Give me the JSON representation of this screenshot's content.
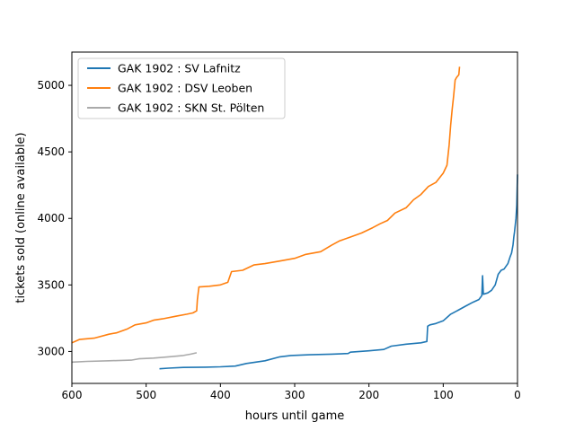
{
  "chart_data": {
    "type": "line",
    "xlabel": "hours until game",
    "ylabel": "tickets sold (online available)",
    "xlim": [
      600,
      0
    ],
    "ylim": [
      2760,
      5250
    ],
    "x_reversed": true,
    "xticks": [
      600,
      500,
      400,
      300,
      200,
      100,
      0
    ],
    "yticks": [
      3000,
      3500,
      4000,
      4500,
      5000
    ],
    "grid": false,
    "legend_position": "top-left",
    "series": [
      {
        "name": "GAK 1902 : SV Lafnitz",
        "color": "#1f77b4",
        "points": [
          [
            482,
            2870
          ],
          [
            470,
            2875
          ],
          [
            450,
            2880
          ],
          [
            420,
            2882
          ],
          [
            400,
            2885
          ],
          [
            380,
            2890
          ],
          [
            365,
            2910
          ],
          [
            340,
            2930
          ],
          [
            320,
            2960
          ],
          [
            305,
            2970
          ],
          [
            280,
            2975
          ],
          [
            250,
            2980
          ],
          [
            228,
            2985
          ],
          [
            225,
            2995
          ],
          [
            200,
            3005
          ],
          [
            180,
            3015
          ],
          [
            170,
            3040
          ],
          [
            150,
            3055
          ],
          [
            130,
            3065
          ],
          [
            122,
            3075
          ],
          [
            121,
            3190
          ],
          [
            118,
            3200
          ],
          [
            110,
            3210
          ],
          [
            100,
            3230
          ],
          [
            90,
            3280
          ],
          [
            80,
            3310
          ],
          [
            70,
            3340
          ],
          [
            60,
            3370
          ],
          [
            52,
            3390
          ],
          [
            48,
            3420
          ],
          [
            47,
            3570
          ],
          [
            46,
            3430
          ],
          [
            40,
            3440
          ],
          [
            35,
            3460
          ],
          [
            30,
            3500
          ],
          [
            26,
            3580
          ],
          [
            22,
            3610
          ],
          [
            18,
            3620
          ],
          [
            13,
            3660
          ],
          [
            10,
            3710
          ],
          [
            8,
            3740
          ],
          [
            6,
            3800
          ],
          [
            5,
            3860
          ],
          [
            4,
            3900
          ],
          [
            3,
            3950
          ],
          [
            2,
            4000
          ],
          [
            1,
            4100
          ],
          [
            0,
            4330
          ]
        ]
      },
      {
        "name": "GAK 1902 : DSV Leoben",
        "color": "#ff7f0e",
        "points": [
          [
            600,
            3065
          ],
          [
            590,
            3090
          ],
          [
            570,
            3100
          ],
          [
            550,
            3130
          ],
          [
            540,
            3140
          ],
          [
            525,
            3170
          ],
          [
            515,
            3200
          ],
          [
            500,
            3215
          ],
          [
            490,
            3235
          ],
          [
            478,
            3245
          ],
          [
            460,
            3265
          ],
          [
            445,
            3280
          ],
          [
            437,
            3290
          ],
          [
            432,
            3305
          ],
          [
            431,
            3390
          ],
          [
            429,
            3485
          ],
          [
            415,
            3490
          ],
          [
            400,
            3500
          ],
          [
            390,
            3520
          ],
          [
            385,
            3600
          ],
          [
            370,
            3610
          ],
          [
            355,
            3650
          ],
          [
            340,
            3660
          ],
          [
            320,
            3680
          ],
          [
            300,
            3700
          ],
          [
            285,
            3730
          ],
          [
            265,
            3750
          ],
          [
            250,
            3800
          ],
          [
            240,
            3830
          ],
          [
            225,
            3860
          ],
          [
            210,
            3890
          ],
          [
            195,
            3930
          ],
          [
            185,
            3960
          ],
          [
            175,
            3985
          ],
          [
            165,
            4040
          ],
          [
            150,
            4080
          ],
          [
            140,
            4140
          ],
          [
            130,
            4180
          ],
          [
            120,
            4240
          ],
          [
            110,
            4270
          ],
          [
            100,
            4340
          ],
          [
            95,
            4400
          ],
          [
            92,
            4550
          ],
          [
            90,
            4700
          ],
          [
            88,
            4820
          ],
          [
            86,
            4920
          ],
          [
            84,
            5040
          ],
          [
            82,
            5060
          ],
          [
            79,
            5080
          ],
          [
            78,
            5140
          ]
        ]
      },
      {
        "name": "GAK 1902 : SKN St. Pölten",
        "color": "#aaaaaa",
        "points": [
          [
            600,
            2920
          ],
          [
            580,
            2925
          ],
          [
            550,
            2930
          ],
          [
            520,
            2935
          ],
          [
            510,
            2945
          ],
          [
            490,
            2950
          ],
          [
            470,
            2960
          ],
          [
            450,
            2970
          ],
          [
            440,
            2980
          ],
          [
            432,
            2990
          ]
        ]
      }
    ]
  }
}
